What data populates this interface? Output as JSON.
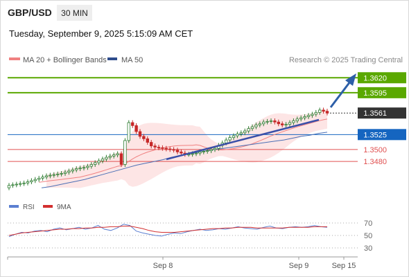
{
  "header": {
    "pair": "GBP/USD",
    "timeframe": "30 MIN",
    "datetime": "Tuesday, September 9, 2025 5:15:09 AM CET"
  },
  "legend": {
    "ma20_label": "MA 20 + Bollinger Bands",
    "ma50_label": "MA 50",
    "research_credit": "Research © 2025 Trading Central",
    "rsi_label": "RSI",
    "rsi_ma_label": "9MA"
  },
  "colors": {
    "candle_up": "#2e7d32",
    "candle_down": "#c62828",
    "bollinger_fill": "#fde0e0",
    "ma20": "#f08080",
    "ma50": "#4a6fb5",
    "resistance": "#5aa800",
    "support_line": "#e05050",
    "trendline": "#3a4fa8",
    "arrow": "#2d5fa8",
    "current_price_bg": "#333333",
    "blue_level_bg": "#1565c0",
    "rsi": "#5b7fd1",
    "rsi_ma": "#d32f2f"
  },
  "chart_data": {
    "type": "candlestick",
    "instrument": "GBP/USD",
    "timeframe": "30 MIN",
    "x_tick_labels": [
      "Sep 8",
      "Sep 9",
      "Sep 15"
    ],
    "current_price": 1.3561,
    "levels": [
      {
        "value": 1.362,
        "label": "1.3620",
        "style": "resistance"
      },
      {
        "value": 1.3595,
        "label": "1.3595",
        "style": "resistance"
      },
      {
        "value": 1.3525,
        "label": "1.3525",
        "style": "pivot"
      },
      {
        "value": 1.35,
        "label": "1.3500",
        "style": "support"
      },
      {
        "value": 1.348,
        "label": "1.3480",
        "style": "support"
      }
    ],
    "closes": [
      1.344,
      1.3441,
      1.3442,
      1.3443,
      1.3444,
      1.3446,
      1.3448,
      1.345,
      1.3452,
      1.3454,
      1.3456,
      1.3457,
      1.3458,
      1.3459,
      1.346,
      1.3462,
      1.3464,
      1.3466,
      1.3468,
      1.3469,
      1.347,
      1.3472,
      1.3475,
      1.3478,
      1.3481,
      1.3484,
      1.3487,
      1.3489,
      1.3491,
      1.3493,
      1.3475,
      1.3515,
      1.3545,
      1.354,
      1.353,
      1.3522,
      1.3518,
      1.3512,
      1.3506,
      1.3504,
      1.3503,
      1.3502,
      1.3501,
      1.35,
      1.3499,
      1.3496,
      1.3494,
      1.3492,
      1.3492,
      1.3493,
      1.3494,
      1.3496,
      1.3497,
      1.3498,
      1.35,
      1.3502,
      1.3507,
      1.3511,
      1.3516,
      1.352,
      1.3523,
      1.3526,
      1.3528,
      1.3531,
      1.3535,
      1.3538,
      1.3541,
      1.3543,
      1.3546,
      1.3547,
      1.3548,
      1.3546,
      1.3543,
      1.3541,
      1.3542,
      1.3545,
      1.3548,
      1.3551,
      1.3553,
      1.3555,
      1.3557,
      1.3559,
      1.3562,
      1.3566,
      1.3564,
      1.3561
    ],
    "ma50": [
      1.3436,
      1.3438,
      1.3441,
      1.3444,
      1.3447,
      1.345,
      1.3454,
      1.3458,
      1.3462,
      1.3466,
      1.347,
      1.3474,
      1.3477,
      1.348,
      1.3483,
      1.3487,
      1.349,
      1.3493,
      1.3495,
      1.3498,
      1.35,
      1.3502,
      1.3504,
      1.3506,
      1.3508,
      1.351,
      1.3512,
      1.3514,
      1.3516,
      1.3519,
      1.3522,
      1.3524,
      1.3527,
      1.3529
    ],
    "trendlines": [
      {
        "from": "Sep 8",
        "to": "Sep 9",
        "description": "rising support trendline"
      }
    ],
    "rsi": {
      "levels": [
        70,
        50,
        30
      ],
      "level_labels": [
        "70",
        "50",
        "30"
      ],
      "ylim": [
        20,
        80
      ],
      "values": [
        48,
        52,
        55,
        54,
        57,
        58,
        56,
        60,
        62,
        59,
        61,
        63,
        60,
        62,
        66,
        60,
        58,
        62,
        68,
        66,
        57,
        54,
        52,
        50,
        49,
        52,
        54,
        53,
        56,
        58,
        60,
        58,
        59,
        61,
        60,
        62,
        64,
        62,
        61,
        60,
        63,
        65,
        62,
        61,
        63,
        64,
        63,
        64,
        66,
        64,
        63
      ],
      "ma9": [
        50,
        52,
        54,
        55,
        56,
        57,
        58,
        59,
        60,
        60,
        61,
        61,
        62,
        62,
        63,
        63,
        64,
        64,
        65,
        65,
        63,
        61,
        58,
        56,
        55,
        55,
        55,
        56,
        57,
        58,
        59,
        60,
        61,
        61,
        62,
        62,
        63,
        63,
        63,
        62,
        62,
        62,
        62,
        62,
        63,
        63,
        63,
        63,
        64,
        64,
        64
      ]
    }
  }
}
